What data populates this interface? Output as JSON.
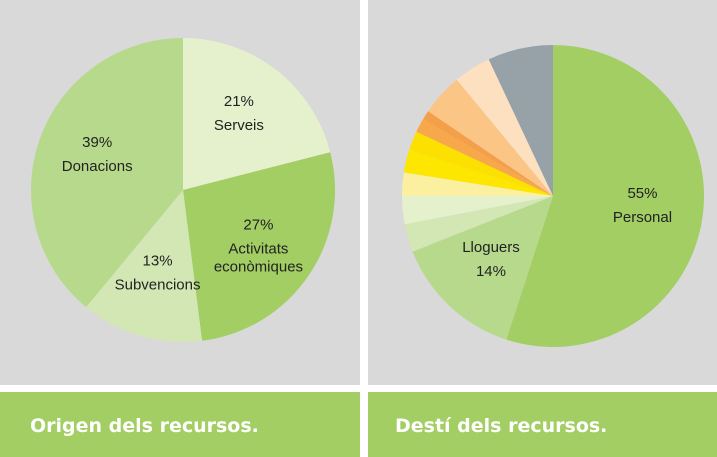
{
  "chart_data": [
    {
      "type": "pie",
      "title": "Origen dels recursos.",
      "categories": [
        "Serveis",
        "Activitats econòmiques",
        "Subvencions",
        "Donacions"
      ],
      "values": [
        21,
        27,
        13,
        39
      ],
      "value_labels": [
        "21%",
        "27%",
        "13%",
        "39%"
      ],
      "colors": [
        "#e5f0cd",
        "#a2ce63",
        "#d3e7b4",
        "#b6d98c"
      ]
    },
    {
      "type": "pie",
      "title": "Destí dels recursos.",
      "categories": [
        "Personal",
        "Lloguers",
        null,
        null,
        null,
        null,
        null,
        null,
        null,
        null,
        null,
        null
      ],
      "values": [
        55,
        14,
        3,
        3,
        2.5,
        2.5,
        2,
        1.5,
        1,
        4.5,
        4,
        7
      ],
      "value_labels": [
        "55%",
        "14%",
        null,
        null,
        null,
        null,
        null,
        null,
        null,
        null,
        null,
        null
      ],
      "colors": [
        "#a2ce63",
        "#b6d98c",
        "#d3e7b4",
        "#e5f0cd",
        "#fbf0a0",
        "#fde600",
        "#fbe000",
        "#f7a84a",
        "#f4a04a",
        "#fbc585",
        "#fde0c0",
        "#97a1a8"
      ]
    }
  ]
}
